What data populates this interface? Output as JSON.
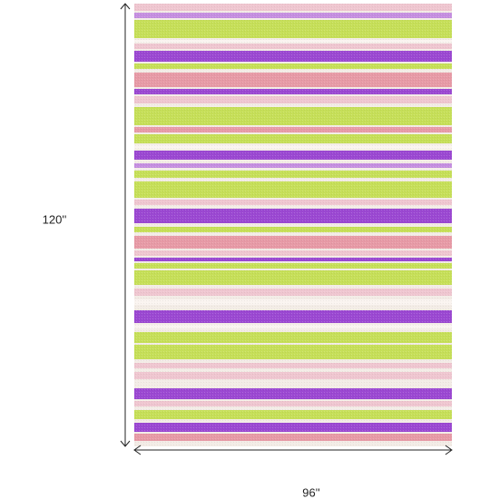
{
  "dimensions": {
    "height": "120''",
    "width": "96''"
  }
}
